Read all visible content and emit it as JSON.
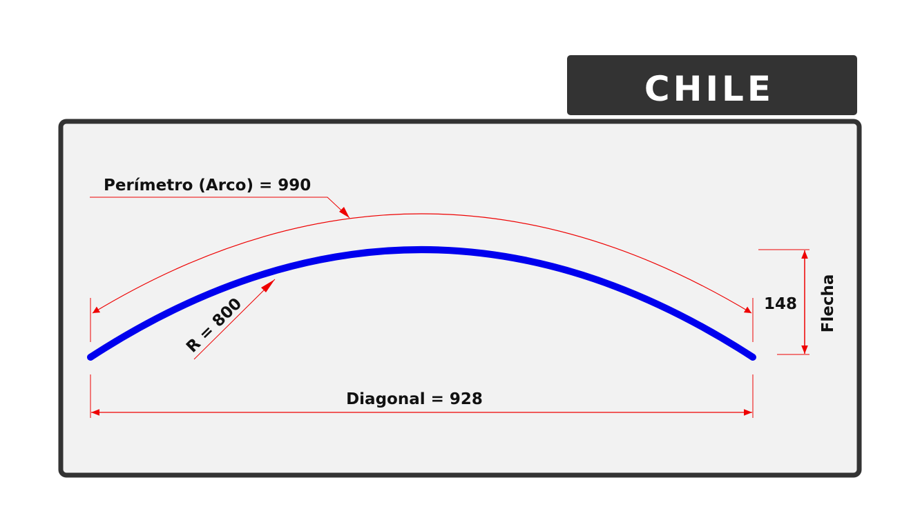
{
  "header": {
    "country": "CHILE"
  },
  "dimensions": {
    "perimeter_label": "Perímetro (Arco) = 990",
    "radius_label": "R = 800",
    "diagonal_label": "Diagonal = 928",
    "sagitta_value": "148",
    "sagitta_label": "Flecha"
  },
  "colors": {
    "arc": "#0000ee",
    "dimension": "#ee0000",
    "frame": "#333333",
    "panel": "#f2f2f2",
    "header_bg": "#333333"
  }
}
